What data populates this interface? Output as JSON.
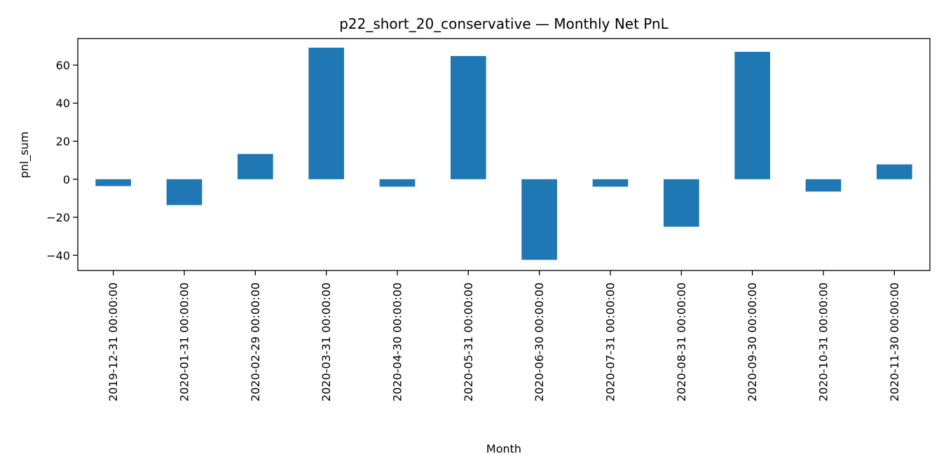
{
  "chart_data": {
    "type": "bar",
    "title": "p22_short_20_conservative — Monthly Net PnL",
    "xlabel": "Month",
    "ylabel": "pnl_sum",
    "categories": [
      "2019-12-31 00:00:00",
      "2020-01-31 00:00:00",
      "2020-02-29 00:00:00",
      "2020-03-31 00:00:00",
      "2020-04-30 00:00:00",
      "2020-05-31 00:00:00",
      "2020-06-30 00:00:00",
      "2020-07-31 00:00:00",
      "2020-08-31 00:00:00",
      "2020-09-30 00:00:00",
      "2020-10-31 00:00:00",
      "2020-11-30 00:00:00"
    ],
    "values": [
      -3.6,
      -13.6,
      13.3,
      69.2,
      -3.9,
      64.8,
      -42.4,
      -3.9,
      -25.0,
      67.0,
      -6.5,
      7.8
    ],
    "ylim": [
      -48,
      74
    ],
    "yticks": [
      -40,
      -20,
      0,
      20,
      40,
      60
    ],
    "ytick_labels": [
      "−40",
      "−20",
      "0",
      "20",
      "40",
      "60"
    ],
    "grid": false,
    "legend": "none",
    "bar_color": "#1f77b4"
  }
}
